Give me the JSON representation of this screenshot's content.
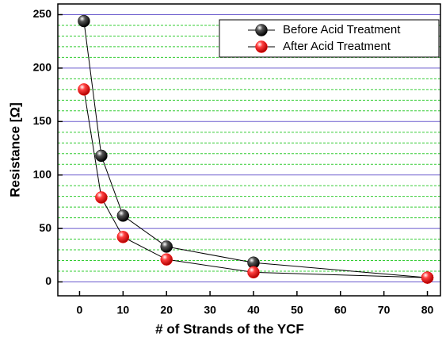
{
  "chart_data": {
    "type": "line",
    "xlabel": "# of Strands of the YCF",
    "ylabel": "Resistance [Ω]",
    "x": [
      1,
      5,
      10,
      20,
      40,
      80
    ],
    "series": [
      {
        "name": "Before Acid Treatment",
        "color": "#000000",
        "values": [
          244,
          118,
          62,
          33,
          18,
          4
        ]
      },
      {
        "name": "After Acid Treatment",
        "color": "#ff0000",
        "values": [
          180,
          79,
          42,
          21,
          9,
          4
        ]
      }
    ],
    "xlim": [
      -5,
      83
    ],
    "xticks": [
      0,
      10,
      20,
      30,
      40,
      50,
      60,
      70,
      80
    ],
    "ylim": [
      -13,
      260
    ],
    "yticks": [
      0,
      50,
      100,
      150,
      200,
      250
    ],
    "minor_yticks": [
      10,
      20,
      30,
      40,
      60,
      70,
      80,
      90,
      110,
      120,
      130,
      140,
      160,
      170,
      180,
      190,
      210,
      220,
      230,
      240
    ],
    "grid": true,
    "legend": "upper right"
  }
}
